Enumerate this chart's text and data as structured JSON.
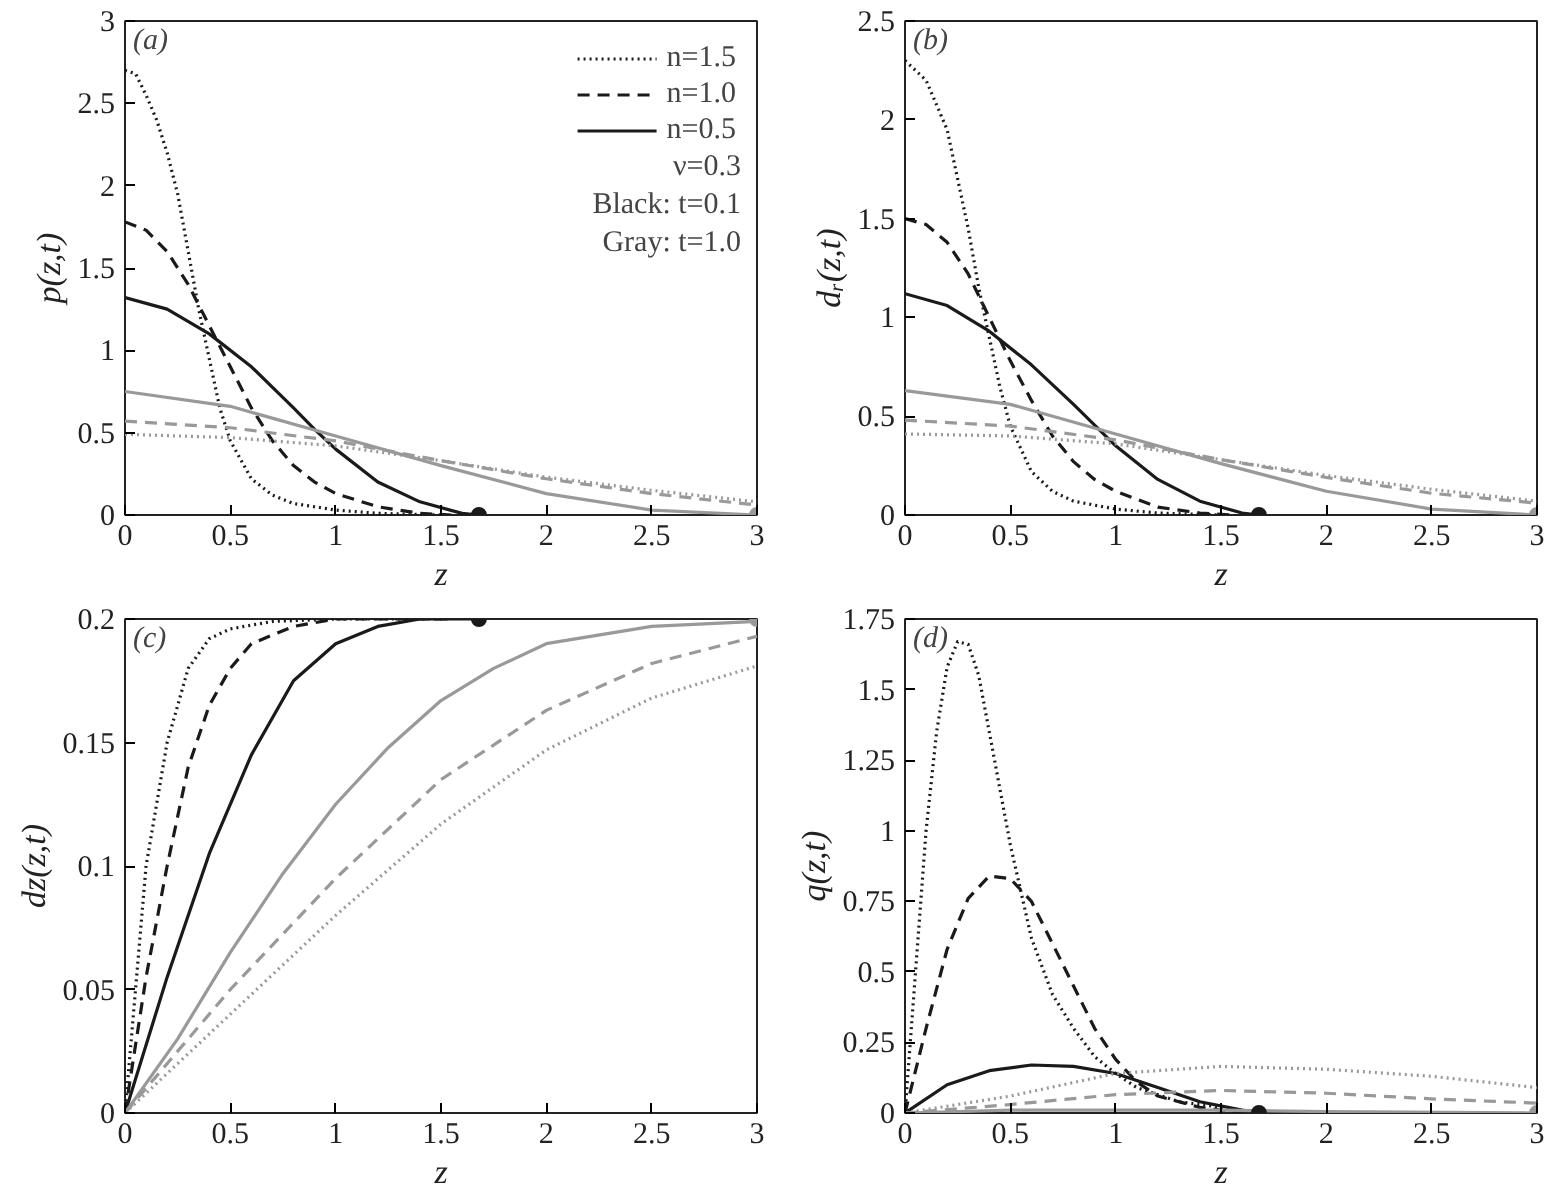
{
  "chart_data": [
    {
      "type": "line",
      "xlabel": "z",
      "ylabel": "p(z,t)",
      "xlim": [
        0,
        3
      ],
      "xticks": [
        0,
        0.5,
        1,
        1.5,
        2,
        2.5,
        3
      ],
      "ylim": [
        0,
        3
      ],
      "yticks": [
        0,
        0.5,
        1,
        1.5,
        2,
        2.5,
        3
      ],
      "grid": false,
      "legend": "top right",
      "annotations": [
        "(a)",
        "ν=0.3",
        "Black: t=0.1",
        "Gray: t=1.0"
      ],
      "series": [
        {
          "name": "n=1.5",
          "color": "#1a1a1a",
          "line_style": "dotted",
          "x": [
            0,
            0.05,
            0.1,
            0.15,
            0.2,
            0.25,
            0.3,
            0.35,
            0.4,
            0.45,
            0.5,
            0.6,
            0.7,
            0.8,
            1.0,
            1.2,
            1.5
          ],
          "values": [
            2.7,
            2.68,
            2.55,
            2.4,
            2.2,
            1.95,
            1.6,
            1.25,
            0.95,
            0.65,
            0.45,
            0.22,
            0.12,
            0.07,
            0.03,
            0.01,
            0
          ]
        },
        {
          "name": "n=1.0",
          "color": "#1a1a1a",
          "line_style": "dashed",
          "x": [
            0,
            0.1,
            0.2,
            0.3,
            0.4,
            0.5,
            0.6,
            0.7,
            0.8,
            0.9,
            1.0,
            1.2,
            1.4,
            1.55
          ],
          "values": [
            1.78,
            1.73,
            1.6,
            1.4,
            1.15,
            0.9,
            0.65,
            0.45,
            0.3,
            0.2,
            0.13,
            0.05,
            0.01,
            0
          ]
        },
        {
          "name": "n=0.5",
          "color": "#1a1a1a",
          "line_style": "solid",
          "x": [
            0,
            0.2,
            0.4,
            0.6,
            0.8,
            0.9,
            1.0,
            1.2,
            1.4,
            1.6,
            1.68
          ],
          "values": [
            1.32,
            1.25,
            1.1,
            0.9,
            0.65,
            0.52,
            0.4,
            0.2,
            0.08,
            0.01,
            0
          ]
        },
        {
          "color": "#999999",
          "line_style": "solid",
          "x": [
            0,
            0.5,
            1.0,
            1.5,
            2.0,
            2.5,
            3
          ],
          "values": [
            0.75,
            0.66,
            0.48,
            0.3,
            0.13,
            0.03,
            0
          ]
        },
        {
          "color": "#999999",
          "line_style": "dashed",
          "x": [
            0,
            0.5,
            1.0,
            1.5,
            2.0,
            2.5,
            3
          ],
          "values": [
            0.57,
            0.53,
            0.45,
            0.33,
            0.22,
            0.13,
            0.06
          ]
        },
        {
          "color": "#999999",
          "line_style": "dotted",
          "x": [
            0,
            0.5,
            1.0,
            1.5,
            2.0,
            2.5,
            3
          ],
          "values": [
            0.49,
            0.47,
            0.42,
            0.33,
            0.23,
            0.15,
            0.08
          ]
        },
        {
          "type": "scatter",
          "marker": "circle",
          "color": "#1a1a1a",
          "x": [
            1.68
          ],
          "values": [
            0
          ]
        },
        {
          "type": "scatter",
          "marker": "circle",
          "color": "#999999",
          "x": [
            3
          ],
          "values": [
            0
          ]
        }
      ]
    },
    {
      "type": "line",
      "xlabel": "z",
      "ylabel": "dᵣ(z,t)",
      "xlim": [
        0,
        3
      ],
      "xticks": [
        0,
        0.5,
        1,
        1.5,
        2,
        2.5,
        3
      ],
      "ylim": [
        0,
        2.5
      ],
      "yticks": [
        0,
        0.5,
        1,
        1.5,
        2,
        2.5
      ],
      "grid": false,
      "annotations": [
        "(b)"
      ],
      "series": [
        {
          "color": "#1a1a1a",
          "line_style": "dotted",
          "x": [
            0,
            0.1,
            0.2,
            0.3,
            0.35,
            0.4,
            0.45,
            0.5,
            0.6,
            0.7,
            0.8,
            1.0,
            1.2,
            1.5
          ],
          "values": [
            2.3,
            2.2,
            1.95,
            1.45,
            1.15,
            0.9,
            0.65,
            0.45,
            0.22,
            0.12,
            0.07,
            0.03,
            0.01,
            0
          ]
        },
        {
          "color": "#1a1a1a",
          "line_style": "dashed",
          "x": [
            0,
            0.1,
            0.2,
            0.3,
            0.4,
            0.5,
            0.6,
            0.7,
            0.8,
            0.9,
            1.0,
            1.2,
            1.4,
            1.55
          ],
          "values": [
            1.5,
            1.47,
            1.38,
            1.22,
            1.0,
            0.78,
            0.58,
            0.4,
            0.27,
            0.18,
            0.12,
            0.04,
            0.01,
            0
          ]
        },
        {
          "color": "#1a1a1a",
          "line_style": "solid",
          "x": [
            0,
            0.2,
            0.4,
            0.6,
            0.8,
            1.0,
            1.2,
            1.4,
            1.6,
            1.68
          ],
          "values": [
            1.12,
            1.06,
            0.93,
            0.76,
            0.56,
            0.35,
            0.18,
            0.07,
            0.01,
            0
          ]
        },
        {
          "color": "#999999",
          "line_style": "solid",
          "x": [
            0,
            0.5,
            1.0,
            1.5,
            2.0,
            2.5,
            3
          ],
          "values": [
            0.63,
            0.56,
            0.41,
            0.26,
            0.12,
            0.03,
            0
          ]
        },
        {
          "color": "#999999",
          "line_style": "dashed",
          "x": [
            0,
            0.5,
            1.0,
            1.5,
            2.0,
            2.5,
            3
          ],
          "values": [
            0.48,
            0.45,
            0.38,
            0.28,
            0.19,
            0.11,
            0.06
          ]
        },
        {
          "color": "#999999",
          "line_style": "dotted",
          "x": [
            0,
            0.5,
            1.0,
            1.5,
            2.0,
            2.5,
            3
          ],
          "values": [
            0.41,
            0.4,
            0.36,
            0.28,
            0.2,
            0.13,
            0.07
          ]
        },
        {
          "type": "scatter",
          "marker": "circle",
          "color": "#1a1a1a",
          "x": [
            1.68
          ],
          "values": [
            0
          ]
        },
        {
          "type": "scatter",
          "marker": "circle",
          "color": "#999999",
          "x": [
            3
          ],
          "values": [
            0
          ]
        }
      ]
    },
    {
      "type": "line",
      "xlabel": "z",
      "ylabel": "dz(z,t)",
      "xlim": [
        0,
        3
      ],
      "xticks": [
        0,
        0.5,
        1,
        1.5,
        2,
        2.5,
        3
      ],
      "ylim": [
        0,
        0.2
      ],
      "yticks": [
        0,
        0.05,
        0.1,
        0.15,
        0.2
      ],
      "grid": false,
      "annotations": [
        "(c)"
      ],
      "series": [
        {
          "color": "#1a1a1a",
          "line_style": "dotted",
          "x": [
            0,
            0.1,
            0.2,
            0.3,
            0.4,
            0.5,
            0.7,
            1.0,
            1.5
          ],
          "values": [
            0,
            0.1,
            0.15,
            0.18,
            0.192,
            0.196,
            0.199,
            0.2,
            0.2
          ]
        },
        {
          "color": "#1a1a1a",
          "line_style": "dashed",
          "x": [
            0,
            0.1,
            0.2,
            0.3,
            0.4,
            0.5,
            0.6,
            0.8,
            1.0,
            1.55
          ],
          "values": [
            0,
            0.055,
            0.1,
            0.14,
            0.165,
            0.18,
            0.19,
            0.197,
            0.2,
            0.2
          ]
        },
        {
          "color": "#1a1a1a",
          "line_style": "solid",
          "x": [
            0,
            0.2,
            0.4,
            0.6,
            0.8,
            1.0,
            1.2,
            1.4,
            1.68
          ],
          "values": [
            0,
            0.055,
            0.105,
            0.145,
            0.175,
            0.19,
            0.197,
            0.2,
            0.2
          ]
        },
        {
          "color": "#999999",
          "line_style": "solid",
          "x": [
            0,
            0.25,
            0.5,
            0.75,
            1.0,
            1.25,
            1.5,
            1.75,
            2.0,
            2.5,
            3
          ],
          "values": [
            0,
            0.03,
            0.065,
            0.097,
            0.125,
            0.148,
            0.167,
            0.18,
            0.19,
            0.197,
            0.199
          ]
        },
        {
          "color": "#999999",
          "line_style": "dashed",
          "x": [
            0,
            0.5,
            1.0,
            1.5,
            2.0,
            2.5,
            3
          ],
          "values": [
            0,
            0.05,
            0.095,
            0.135,
            0.163,
            0.182,
            0.193
          ]
        },
        {
          "color": "#999999",
          "line_style": "dotted",
          "x": [
            0,
            0.5,
            1.0,
            1.5,
            2.0,
            2.5,
            3
          ],
          "values": [
            0,
            0.04,
            0.08,
            0.117,
            0.147,
            0.168,
            0.181
          ]
        },
        {
          "type": "scatter",
          "marker": "circle",
          "color": "#1a1a1a",
          "x": [
            1.68
          ],
          "values": [
            0.2
          ]
        },
        {
          "type": "scatter",
          "marker": "circle",
          "color": "#999999",
          "x": [
            3
          ],
          "values": [
            0.2
          ]
        }
      ]
    },
    {
      "type": "line",
      "xlabel": "z",
      "ylabel": "q(z,t)",
      "xlim": [
        0,
        3
      ],
      "xticks": [
        0,
        0.5,
        1,
        1.5,
        2,
        2.5,
        3
      ],
      "ylim": [
        0,
        1.75
      ],
      "yticks": [
        0,
        0.25,
        0.5,
        0.75,
        1,
        1.25,
        1.5,
        1.75
      ],
      "grid": false,
      "annotations": [
        "(d)"
      ],
      "series": [
        {
          "color": "#1a1a1a",
          "line_style": "dotted",
          "x": [
            0,
            0.05,
            0.1,
            0.15,
            0.2,
            0.25,
            0.3,
            0.35,
            0.4,
            0.5,
            0.6,
            0.7,
            0.8,
            0.9,
            1.0,
            1.1,
            1.3,
            1.5,
            1.7
          ],
          "values": [
            0,
            0.5,
            1.0,
            1.35,
            1.58,
            1.67,
            1.66,
            1.55,
            1.35,
            0.95,
            0.62,
            0.42,
            0.3,
            0.2,
            0.14,
            0.09,
            0.04,
            0.02,
            0
          ]
        },
        {
          "color": "#1a1a1a",
          "line_style": "dashed",
          "x": [
            0,
            0.1,
            0.2,
            0.3,
            0.4,
            0.5,
            0.6,
            0.7,
            0.8,
            0.9,
            1.0,
            1.1,
            1.2,
            1.4,
            1.6
          ],
          "values": [
            0,
            0.3,
            0.58,
            0.76,
            0.84,
            0.83,
            0.75,
            0.6,
            0.45,
            0.3,
            0.19,
            0.11,
            0.06,
            0.02,
            0
          ]
        },
        {
          "color": "#1a1a1a",
          "line_style": "solid",
          "x": [
            0,
            0.2,
            0.4,
            0.6,
            0.8,
            1.0,
            1.2,
            1.4,
            1.6,
            1.68
          ],
          "values": [
            0,
            0.1,
            0.15,
            0.17,
            0.165,
            0.14,
            0.09,
            0.04,
            0.01,
            0
          ]
        },
        {
          "color": "#999999",
          "line_style": "solid",
          "x": [
            0,
            0.5,
            1.0,
            1.5,
            2.0,
            3
          ],
          "values": [
            0,
            0.01,
            0.01,
            0.01,
            0.005,
            0
          ]
        },
        {
          "color": "#999999",
          "line_style": "dashed",
          "x": [
            0,
            0.5,
            1.0,
            1.5,
            2.0,
            2.5,
            3
          ],
          "values": [
            0,
            0.03,
            0.065,
            0.08,
            0.07,
            0.05,
            0.035
          ]
        },
        {
          "color": "#999999",
          "line_style": "dotted",
          "x": [
            0,
            0.5,
            1.0,
            1.5,
            2.0,
            2.5,
            3
          ],
          "values": [
            0,
            0.06,
            0.14,
            0.165,
            0.155,
            0.13,
            0.09
          ]
        },
        {
          "type": "scatter",
          "marker": "circle",
          "color": "#1a1a1a",
          "x": [
            1.68
          ],
          "values": [
            0
          ]
        },
        {
          "type": "scatter",
          "marker": "circle",
          "color": "#999999",
          "x": [
            3
          ],
          "values": [
            0
          ]
        }
      ]
    }
  ]
}
